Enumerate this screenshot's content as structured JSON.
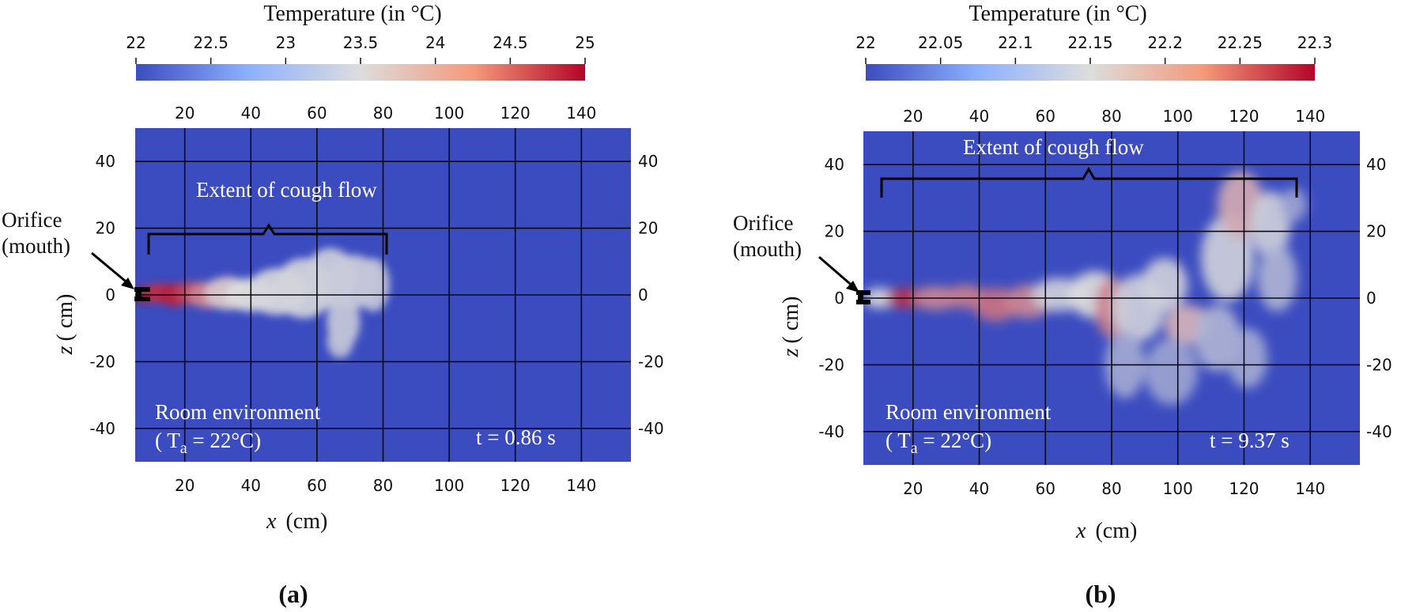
{
  "colors": {
    "background": "#3b4cc0",
    "grid": "#0a0a14",
    "cold": "#3b4cc0",
    "neutral": "#dddddd",
    "hot": "#b40426"
  },
  "panels": [
    {
      "label": "(a)",
      "time_label": "t = 0.86 s",
      "colorbar": {
        "title": "Temperature (in °C)",
        "range": [
          22,
          25
        ],
        "ticks": [
          "22",
          "22.5",
          "23",
          "23.5",
          "24",
          "24.5",
          "25"
        ]
      },
      "extent_label": "Extent of cough flow",
      "orifice_label": [
        "Orifice",
        "(mouth)"
      ],
      "room_label": [
        "Room environment",
        "( T",
        "a",
        " = 22°C)"
      ],
      "xlabel": [
        "x",
        "(cm)"
      ],
      "ylabel": [
        "z",
        "( cm)"
      ]
    },
    {
      "label": "(b)",
      "time_label": "t = 9.37 s",
      "colorbar": {
        "title": "Temperature (in °C)",
        "range": [
          22,
          22.3
        ],
        "ticks": [
          "22",
          "22.05",
          "22.1",
          "22.15",
          "22.2",
          "22.25",
          "22.3"
        ]
      },
      "extent_label": "Extent of cough flow",
      "orifice_label": [
        "Orifice",
        "(mouth)"
      ],
      "room_label": [
        "Room environment",
        "( T",
        "a",
        " = 22°C)"
      ],
      "xlabel": [
        "x",
        "(cm)"
      ],
      "ylabel": [
        "z",
        "( cm)"
      ]
    }
  ],
  "chart_data": [
    {
      "type": "heatmap",
      "title": "",
      "xlabel": "x (cm)",
      "ylabel": "z ( cm)",
      "xlim": [
        5,
        155
      ],
      "ylim": [
        -50,
        50
      ],
      "x_ticks": [
        20,
        40,
        60,
        80,
        100,
        120,
        140
      ],
      "y_ticks": [
        40,
        20,
        0,
        -20,
        -40
      ],
      "grid": true,
      "colorbar_range": [
        22,
        25
      ],
      "orifice": {
        "x": 6,
        "z": 0
      },
      "cough_extent_x": [
        9,
        81
      ],
      "jet": [
        {
          "x": 8,
          "z": 0,
          "level": 0.97,
          "w": 4,
          "h": 2.5
        },
        {
          "x": 12,
          "z": 0.5,
          "level": 0.9,
          "w": 5,
          "h": 3
        },
        {
          "x": 17,
          "z": 0,
          "level": 0.93,
          "w": 5,
          "h": 3.5
        },
        {
          "x": 22,
          "z": 0.5,
          "level": 0.85,
          "w": 5,
          "h": 3.5
        },
        {
          "x": 27,
          "z": 0,
          "level": 0.7,
          "w": 6,
          "h": 4
        },
        {
          "x": 33,
          "z": 0.5,
          "level": 0.55,
          "w": 7,
          "h": 5
        },
        {
          "x": 40,
          "z": 0,
          "level": 0.5,
          "w": 8,
          "h": 5
        },
        {
          "x": 48,
          "z": 1,
          "level": 0.48,
          "w": 9,
          "h": 7
        },
        {
          "x": 56,
          "z": 2,
          "level": 0.47,
          "w": 9,
          "h": 9
        },
        {
          "x": 64,
          "z": 5,
          "level": 0.45,
          "w": 8,
          "h": 9
        },
        {
          "x": 71,
          "z": 4,
          "level": 0.44,
          "w": 8,
          "h": 8
        },
        {
          "x": 77,
          "z": 3,
          "level": 0.42,
          "w": 5,
          "h": 8
        },
        {
          "x": 68,
          "z": -8,
          "level": 0.43,
          "w": 5,
          "h": 8
        },
        {
          "x": 67,
          "z": -14,
          "level": 0.4,
          "w": 4,
          "h": 5
        }
      ]
    },
    {
      "type": "heatmap",
      "title": "",
      "xlabel": "x (cm)",
      "ylabel": "z ( cm)",
      "xlim": [
        5,
        155
      ],
      "ylim": [
        -50,
        50
      ],
      "x_ticks": [
        20,
        40,
        60,
        80,
        100,
        120,
        140
      ],
      "y_ticks": [
        40,
        20,
        0,
        -20,
        -40
      ],
      "grid": true,
      "colorbar_range": [
        22,
        22.3
      ],
      "orifice": {
        "x": 6,
        "z": 0
      },
      "cough_extent_x": [
        10,
        136
      ],
      "jet": [
        {
          "x": 10,
          "z": 0,
          "level": 0.5,
          "w": 5,
          "h": 3
        },
        {
          "x": 18,
          "z": 0,
          "level": 0.9,
          "w": 6,
          "h": 3
        },
        {
          "x": 27,
          "z": 0,
          "level": 0.7,
          "w": 7,
          "h": 3.5
        },
        {
          "x": 36,
          "z": 0.5,
          "level": 0.72,
          "w": 6,
          "h": 3.5
        },
        {
          "x": 45,
          "z": -2,
          "level": 0.75,
          "w": 7,
          "h": 5
        },
        {
          "x": 55,
          "z": -1,
          "level": 0.7,
          "w": 7,
          "h": 5
        },
        {
          "x": 64,
          "z": 1,
          "level": 0.45,
          "w": 8,
          "h": 5
        },
        {
          "x": 75,
          "z": 1,
          "level": 0.5,
          "w": 8,
          "h": 7
        },
        {
          "x": 80,
          "z": -3,
          "level": 0.72,
          "w": 5,
          "h": 9
        },
        {
          "x": 88,
          "z": -3,
          "level": 0.45,
          "w": 8,
          "h": 10
        },
        {
          "x": 96,
          "z": 4,
          "level": 0.45,
          "w": 7,
          "h": 8
        },
        {
          "x": 103,
          "z": -8,
          "level": 0.6,
          "w": 7,
          "h": 6
        },
        {
          "x": 84,
          "z": -20,
          "level": 0.32,
          "w": 6,
          "h": 10
        },
        {
          "x": 98,
          "z": -22,
          "level": 0.3,
          "w": 8,
          "h": 10
        },
        {
          "x": 112,
          "z": -12,
          "level": 0.35,
          "w": 7,
          "h": 10
        },
        {
          "x": 121,
          "z": -18,
          "level": 0.32,
          "w": 6,
          "h": 9
        },
        {
          "x": 115,
          "z": 12,
          "level": 0.45,
          "w": 8,
          "h": 13
        },
        {
          "x": 119,
          "z": 28,
          "level": 0.62,
          "w": 7,
          "h": 10
        },
        {
          "x": 128,
          "z": 22,
          "level": 0.45,
          "w": 6,
          "h": 10
        },
        {
          "x": 130,
          "z": 6,
          "level": 0.35,
          "w": 6,
          "h": 10
        },
        {
          "x": 135,
          "z": 28,
          "level": 0.3,
          "w": 4,
          "h": 5
        }
      ]
    }
  ]
}
